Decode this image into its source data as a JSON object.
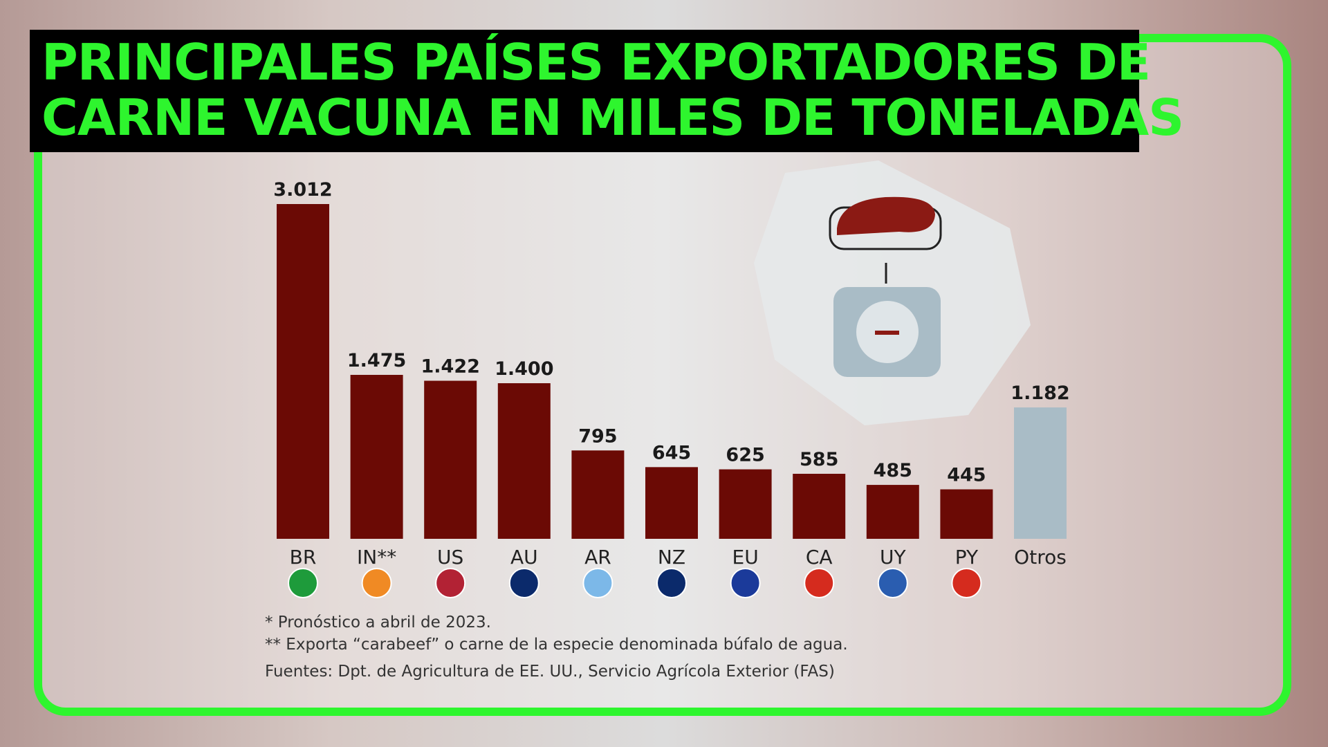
{
  "chart_data": {
    "type": "bar",
    "title": [
      "PRINCIPALES PAÍSES EXPORTADORES DE",
      "CARNE VACUNA EN MILES DE TONELADAS"
    ],
    "categories": [
      "BR",
      "IN**",
      "US",
      "AU",
      "AR",
      "NZ",
      "EU",
      "CA",
      "UY",
      "PY",
      "Otros"
    ],
    "values": [
      3012,
      1475,
      1422,
      1400,
      795,
      645,
      625,
      585,
      485,
      445,
      1182
    ],
    "value_labels": [
      "3.012",
      "1.475",
      "1.422",
      "1.400",
      "795",
      "645",
      "625",
      "585",
      "485",
      "445",
      "1.182"
    ],
    "colors": [
      "#6b0a05",
      "#6b0a05",
      "#6b0a05",
      "#6b0a05",
      "#6b0a05",
      "#6b0a05",
      "#6b0a05",
      "#6b0a05",
      "#6b0a05",
      "#6b0a05",
      "#a9bcc6"
    ],
    "notes": [
      "*  Pronóstico a abril de 2023.",
      "** Exporta “carabeef” o carne de la especie denominada búfalo de agua.",
      "Fuentes: Dpt. de Agricultura de EE. UU., Servicio Agrícola Exterior (FAS)"
    ]
  }
}
